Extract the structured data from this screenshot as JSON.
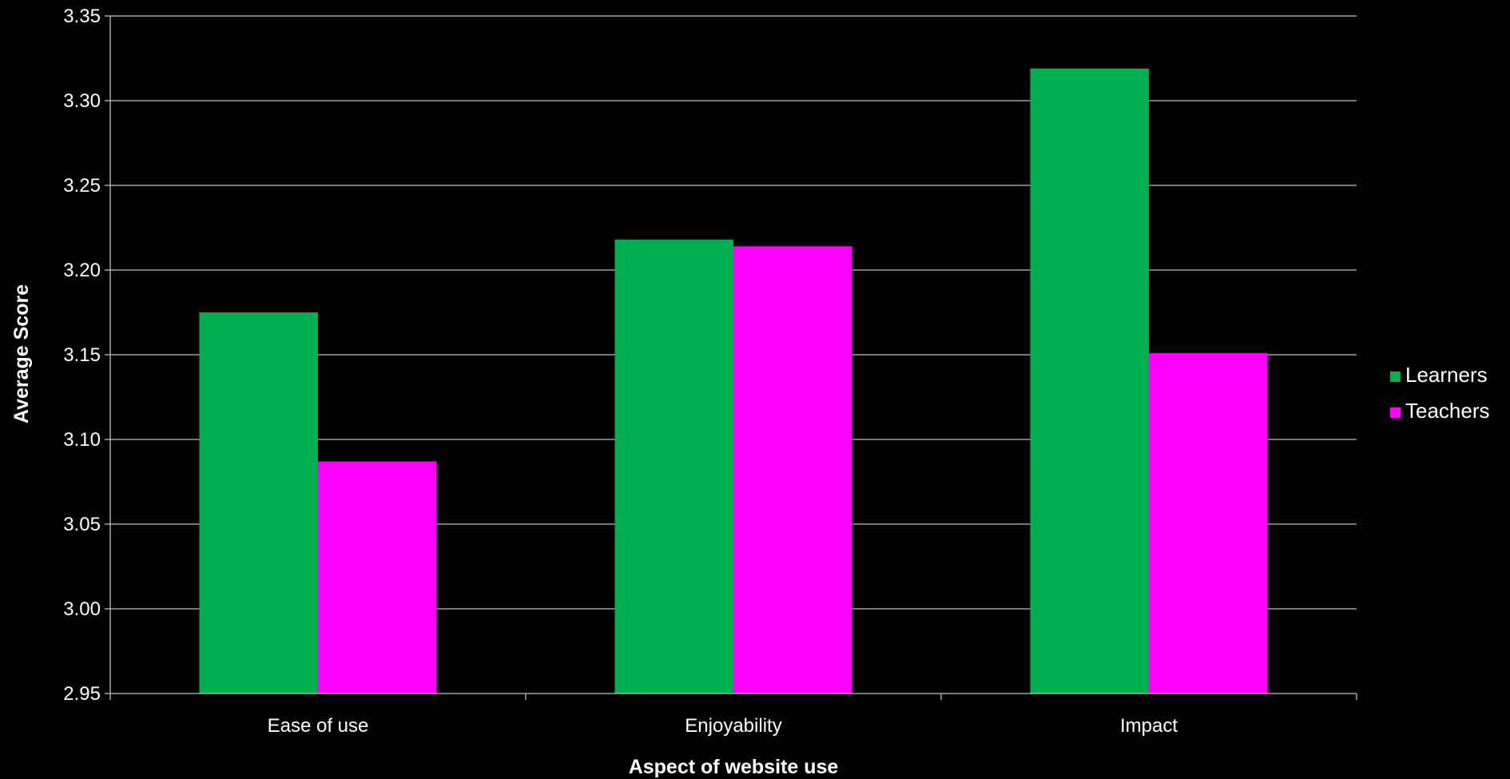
{
  "chart_data": {
    "type": "bar",
    "title": "",
    "xlabel": "Aspect of website use",
    "ylabel": "Average Score",
    "categories": [
      "Ease of use",
      "Enjoyability",
      "Impact"
    ],
    "series": [
      {
        "name": "Learners",
        "color": "#00B050",
        "values": [
          3.175,
          3.218,
          3.319
        ]
      },
      {
        "name": "Teachers",
        "color": "#FF00FF",
        "values": [
          3.087,
          3.214,
          3.151
        ]
      }
    ],
    "ylim": [
      2.95,
      3.35
    ],
    "yticks": [
      "2.95",
      "3.00",
      "3.05",
      "3.10",
      "3.15",
      "3.20",
      "3.25",
      "3.30",
      "3.35"
    ],
    "grid": true,
    "legend_position": "right",
    "background": "#000000",
    "gridline_color": "#BFBFBF"
  }
}
